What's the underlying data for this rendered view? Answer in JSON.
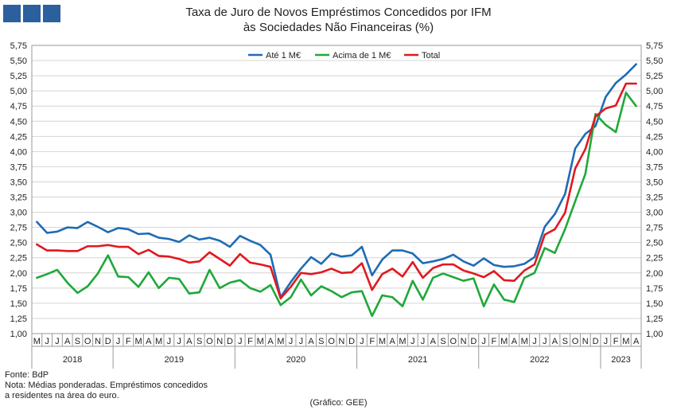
{
  "logo": {
    "color": "#2b5f9e"
  },
  "chart_data": {
    "type": "line",
    "title": "Taxa de Juro de Novos Empréstimos  Concedidos por IFM",
    "subtitle": "às Sociedades Não Financeiras (%)",
    "ylim": [
      1.0,
      5.75
    ],
    "yticks": [
      "1,00",
      "1,25",
      "1,50",
      "1,75",
      "2,00",
      "2,25",
      "2,50",
      "2,75",
      "3,00",
      "3,25",
      "3,50",
      "3,75",
      "4,00",
      "4,25",
      "4,50",
      "4,75",
      "5,00",
      "5,25",
      "5,50",
      "5,75"
    ],
    "grid": true,
    "legend": "top-center",
    "x": [
      "M",
      "J",
      "J",
      "A",
      "S",
      "O",
      "N",
      "D",
      "J",
      "F",
      "M",
      "A",
      "M",
      "J",
      "J",
      "A",
      "S",
      "O",
      "N",
      "D",
      "J",
      "F",
      "M",
      "A",
      "M",
      "J",
      "J",
      "A",
      "S",
      "O",
      "N",
      "D",
      "J",
      "F",
      "M",
      "A",
      "M",
      "J",
      "J",
      "A",
      "S",
      "O",
      "N",
      "D",
      "J",
      "F",
      "M",
      "A",
      "M",
      "J",
      "J",
      "A",
      "S",
      "O",
      "N",
      "D",
      "J",
      "F",
      "M",
      "A"
    ],
    "years": [
      {
        "label": "2018",
        "start": 0,
        "end": 8
      },
      {
        "label": "2019",
        "start": 8,
        "end": 20
      },
      {
        "label": "2020",
        "start": 20,
        "end": 32
      },
      {
        "label": "2021",
        "start": 32,
        "end": 44
      },
      {
        "label": "2022",
        "start": 44,
        "end": 56
      },
      {
        "label": "2023",
        "start": 56,
        "end": 60
      }
    ],
    "series": [
      {
        "name": "Até 1 M€",
        "color": "#1f6bb5",
        "values": [
          2.84,
          2.66,
          2.68,
          2.75,
          2.74,
          2.84,
          2.76,
          2.67,
          2.74,
          2.72,
          2.64,
          2.65,
          2.58,
          2.56,
          2.51,
          2.62,
          2.55,
          2.58,
          2.53,
          2.43,
          2.61,
          2.53,
          2.46,
          2.3,
          1.6,
          1.85,
          2.07,
          2.26,
          2.15,
          2.32,
          2.27,
          2.29,
          2.43,
          1.96,
          2.22,
          2.37,
          2.37,
          2.32,
          2.16,
          2.19,
          2.23,
          2.3,
          2.19,
          2.12,
          2.24,
          2.13,
          2.1,
          2.11,
          2.15,
          2.26,
          2.76,
          2.97,
          3.3,
          4.05,
          4.29,
          4.42,
          4.9,
          5.13,
          5.27,
          5.44
        ]
      },
      {
        "name": "Acima de 1 M€",
        "color": "#1fa83a",
        "values": [
          1.92,
          1.98,
          2.05,
          1.84,
          1.67,
          1.78,
          1.99,
          2.29,
          1.94,
          1.93,
          1.77,
          2.01,
          1.75,
          1.92,
          1.9,
          1.66,
          1.68,
          2.05,
          1.75,
          1.84,
          1.88,
          1.75,
          1.69,
          1.8,
          1.47,
          1.6,
          1.89,
          1.63,
          1.78,
          1.7,
          1.6,
          1.68,
          1.7,
          1.29,
          1.63,
          1.6,
          1.45,
          1.87,
          1.56,
          1.92,
          1.99,
          1.93,
          1.87,
          1.91,
          1.45,
          1.81,
          1.56,
          1.52,
          1.92,
          2.0,
          2.41,
          2.33,
          2.72,
          3.18,
          3.63,
          4.62,
          4.44,
          4.32,
          4.97,
          4.75
        ]
      },
      {
        "name": "Total",
        "color": "#e0191f",
        "values": [
          2.47,
          2.37,
          2.37,
          2.36,
          2.36,
          2.44,
          2.44,
          2.46,
          2.43,
          2.43,
          2.31,
          2.38,
          2.28,
          2.27,
          2.23,
          2.17,
          2.19,
          2.34,
          2.23,
          2.12,
          2.31,
          2.17,
          2.14,
          2.1,
          1.58,
          1.77,
          2.0,
          1.98,
          2.01,
          2.07,
          2.0,
          2.01,
          2.16,
          1.72,
          1.98,
          2.07,
          1.94,
          2.18,
          1.92,
          2.08,
          2.14,
          2.14,
          2.04,
          1.99,
          1.93,
          2.03,
          1.88,
          1.87,
          2.04,
          2.14,
          2.63,
          2.72,
          2.99,
          3.72,
          4.04,
          4.58,
          4.71,
          4.76,
          5.12,
          5.12
        ]
      }
    ]
  },
  "notes": {
    "source": "Fonte: BdP",
    "note_line1": "Nota: Médias ponderadas. Empréstimos concedidos",
    "note_line2": "a residentes na área do euro.",
    "credit": "(Gráfico: GEE)"
  }
}
